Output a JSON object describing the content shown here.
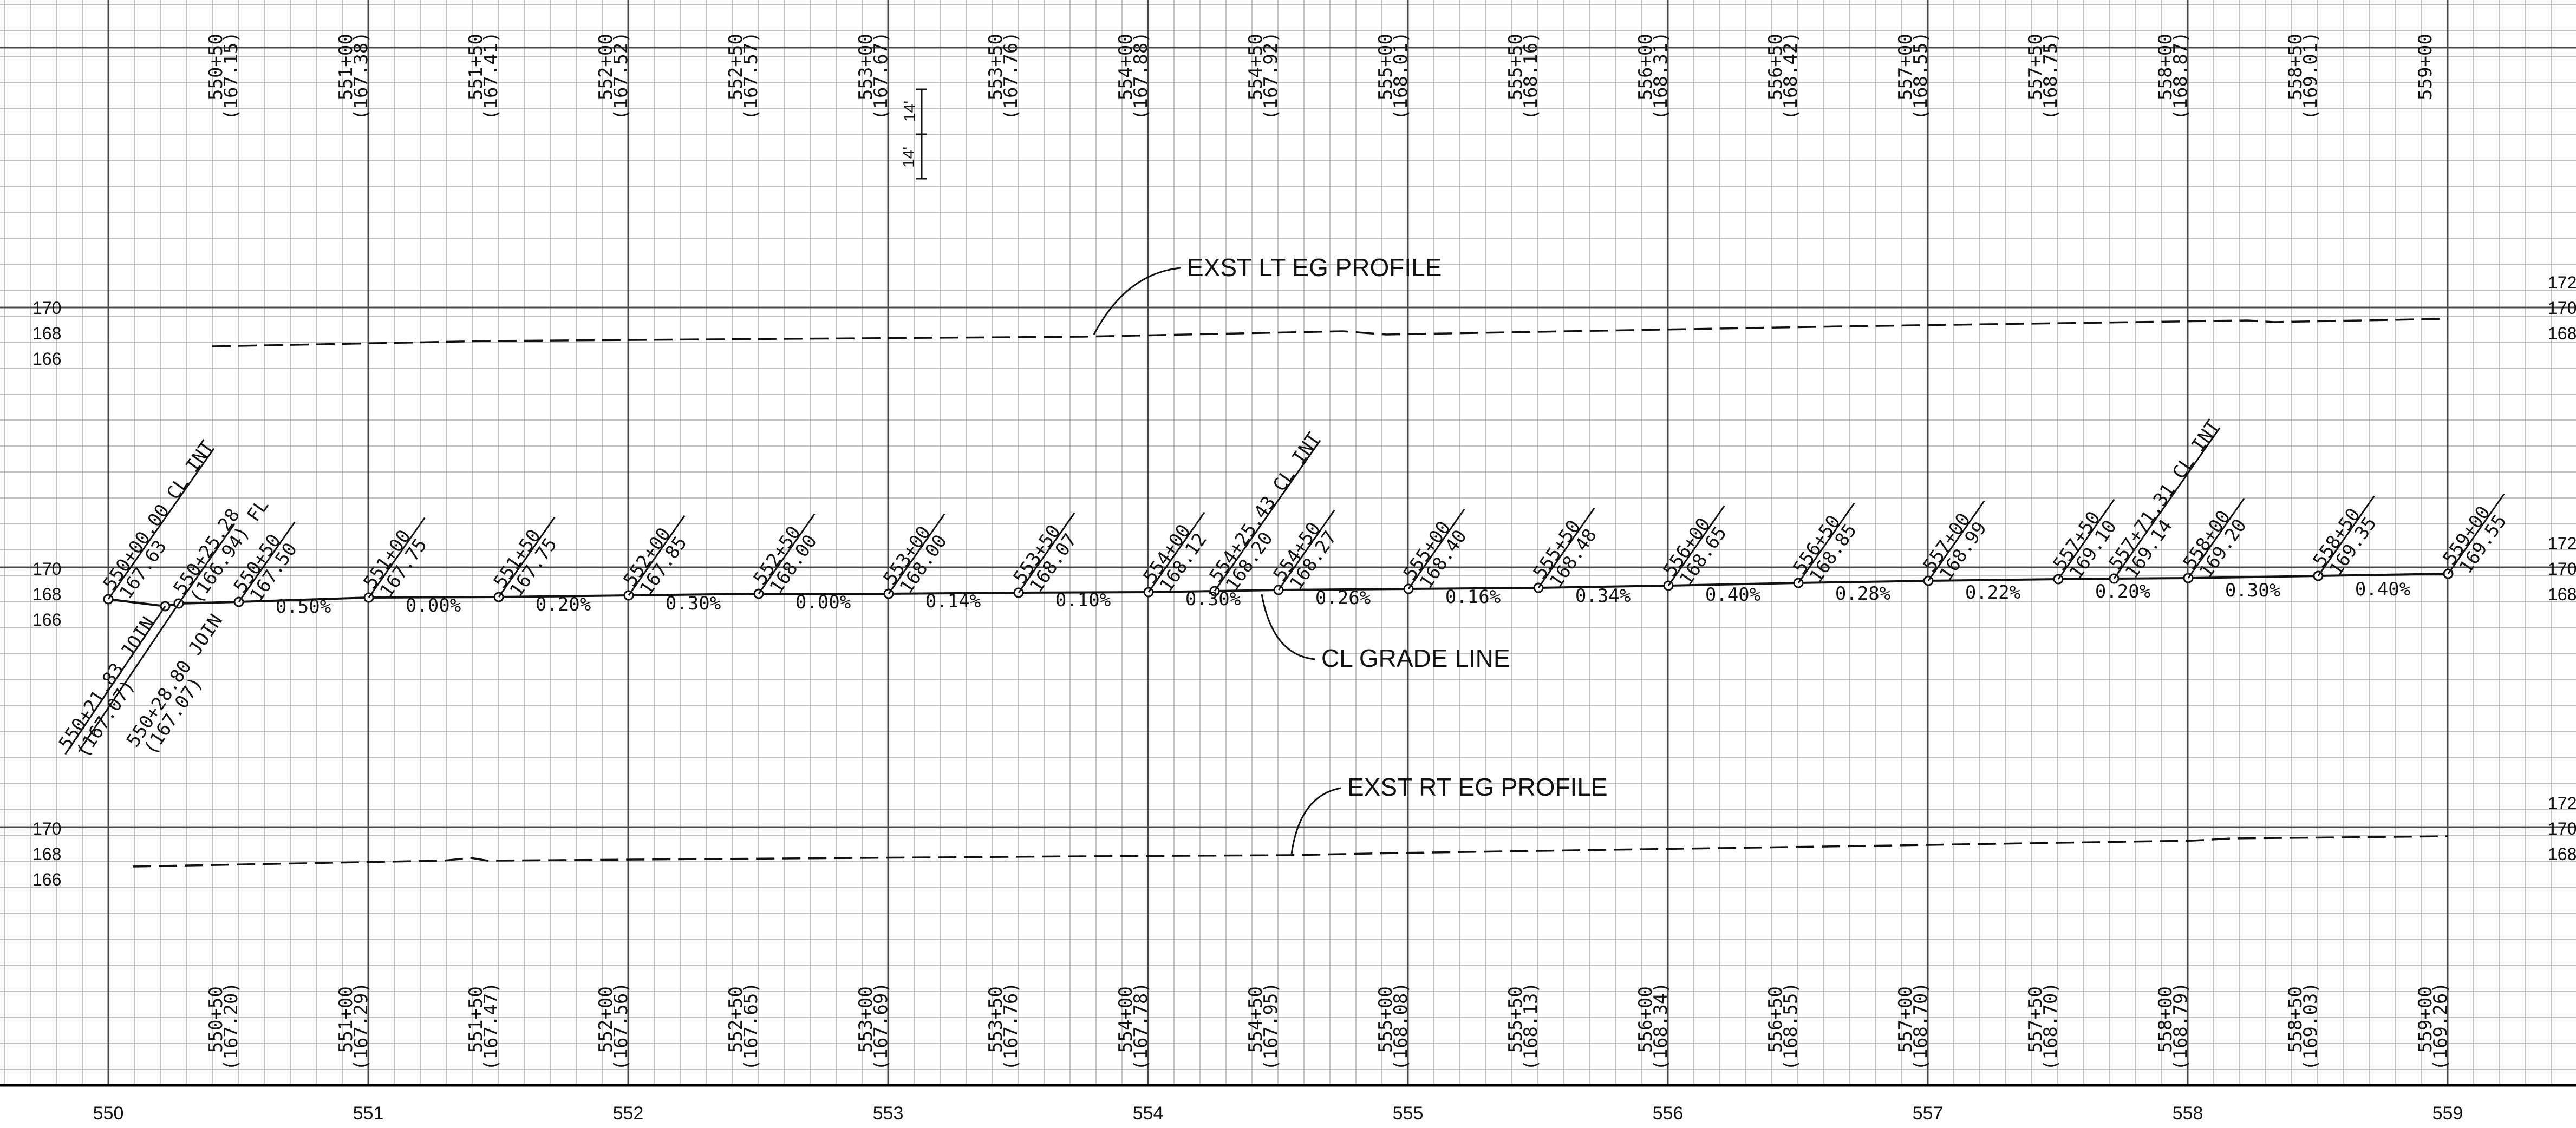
{
  "sheet": {
    "top_stations": [
      "550+50",
      "551+00",
      "551+50",
      "552+00",
      "552+50",
      "553+00",
      "553+50",
      "554+00",
      "554+50",
      "555+00",
      "555+50",
      "556+00",
      "556+50",
      "557+00",
      "557+50",
      "558+00",
      "558+50",
      "559+00"
    ],
    "top_elevations": [
      "(167.15)",
      "(167.38)",
      "(167.41)",
      "(167.52)",
      "(167.57)",
      "(167.67)",
      "(167.76)",
      "(167.88)",
      "(167.92)",
      "(168.01)",
      "(168.16)",
      "(168.31)",
      "(168.42)",
      "(168.55)",
      "(168.75)",
      "(168.87)",
      "(169.01)",
      ""
    ],
    "bottom_stations": [
      "550+50",
      "551+00",
      "551+50",
      "552+00",
      "552+50",
      "553+00",
      "553+50",
      "554+00",
      "554+50",
      "555+00",
      "555+50",
      "556+00",
      "556+50",
      "557+00",
      "557+50",
      "558+00",
      "558+50",
      "559+00"
    ],
    "bottom_elevations": [
      "(167.20)",
      "(167.29)",
      "(167.47)",
      "(167.56)",
      "(167.65)",
      "(167.69)",
      "(167.76)",
      "(167.78)",
      "(167.95)",
      "(168.08)",
      "(168.13)",
      "(168.34)",
      "(168.55)",
      "(168.70)",
      "(168.70)",
      "(168.79)",
      "(169.03)",
      "(169.26)"
    ],
    "axis_labels": [
      "550",
      "551",
      "552",
      "553",
      "554",
      "555",
      "556",
      "557",
      "558",
      "559"
    ],
    "left_band_labels": {
      "top": [
        "170",
        "168",
        "166"
      ],
      "mid": [
        "170",
        "168",
        "166"
      ],
      "bot": [
        "170",
        "168",
        "166"
      ]
    },
    "right_band_labels": {
      "top": [
        "172",
        "170",
        "168"
      ],
      "mid": [
        "172",
        "170",
        "168"
      ],
      "bot": [
        "172",
        "170",
        "168"
      ]
    },
    "callouts": {
      "lt_profile": "EXST LT EG PROFILE",
      "grade_line": "CL GRADE LINE",
      "rt_profile": "EXST RT EG PROFILE"
    },
    "scale_marks": [
      "14'",
      "14'"
    ],
    "grade_points": [
      {
        "sta": "550+00.00 CL INT",
        "elev": "167.63"
      },
      {
        "sta": "550+25.28",
        "elev": "(166.94) FL"
      },
      {
        "sta": "550+50",
        "elev": "167.50"
      },
      {
        "sta": "551+00",
        "elev": "167.75"
      },
      {
        "sta": "551+50",
        "elev": "167.75"
      },
      {
        "sta": "552+00",
        "elev": "167.85"
      },
      {
        "sta": "552+50",
        "elev": "168.00"
      },
      {
        "sta": "553+00",
        "elev": "168.00"
      },
      {
        "sta": "553+50",
        "elev": "168.07"
      },
      {
        "sta": "554+00",
        "elev": "168.12"
      },
      {
        "sta": "554+25.43 CL INT",
        "elev": "168.20"
      },
      {
        "sta": "554+50",
        "elev": "168.27"
      },
      {
        "sta": "555+00",
        "elev": "168.40"
      },
      {
        "sta": "555+50",
        "elev": "168.48"
      },
      {
        "sta": "556+00",
        "elev": "168.65"
      },
      {
        "sta": "556+50",
        "elev": "168.85"
      },
      {
        "sta": "557+00",
        "elev": "168.99"
      },
      {
        "sta": "557+50",
        "elev": "169.10"
      },
      {
        "sta": "557+71.31 CL INT",
        "elev": "169.14"
      },
      {
        "sta": "558+00",
        "elev": "169.20"
      },
      {
        "sta": "558+50",
        "elev": "169.35"
      },
      {
        "sta": "559+00",
        "elev": "169.55"
      }
    ],
    "join_points": [
      {
        "sta": "550+21.83 JOIN",
        "elev": "(167.07)"
      },
      {
        "sta": "550+28.80 JOIN",
        "elev": "(167.07)"
      }
    ],
    "grades": [
      "0.50%",
      "0.00%",
      "0.20%",
      "0.30%",
      "0.00%",
      "0.14%",
      "0.10%",
      "0.30%",
      "0.26%",
      "0.16%",
      "0.34%",
      "0.40%",
      "0.28%",
      "0.22%",
      "0.20%",
      "0.30%",
      "0.40%"
    ]
  }
}
